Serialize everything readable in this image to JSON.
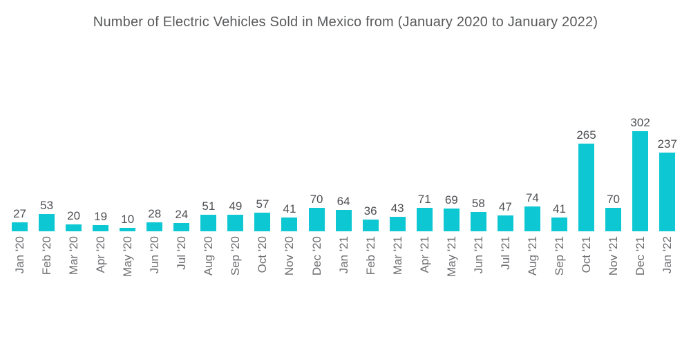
{
  "chart": {
    "title": "Number of Electric Vehicles Sold in Mexico from (January 2020 to January 2022)"
  },
  "chart_data": {
    "type": "bar",
    "title": "Number of Electric Vehicles Sold in Mexico from (January 2020 to January 2022)",
    "categories": [
      "Jan '20",
      "Feb '20",
      "Mar '20",
      "Apr '20",
      "May '20",
      "Jun '20",
      "Jul '20",
      "Aug '20",
      "Sep '20",
      "Oct '20",
      "Nov '20",
      "Dec '20",
      "Jan '21",
      "Feb '21",
      "Mar '21",
      "Apr '21",
      "May '21",
      "Jun '21",
      "Jul '21",
      "Aug '21",
      "Sep '21",
      "Oct '21",
      "Nov '21",
      "Dec '21",
      "Jan '22"
    ],
    "values": [
      27,
      53,
      20,
      19,
      10,
      28,
      24,
      51,
      49,
      57,
      41,
      70,
      64,
      36,
      43,
      71,
      69,
      58,
      47,
      74,
      41,
      265,
      70,
      302,
      237
    ],
    "xlabel": "",
    "ylabel": "",
    "ylim": [
      0,
      302
    ],
    "grid": false,
    "legend": false,
    "data_labels": true,
    "colors": {
      "bar": "#0dc8d2",
      "value_label": "#4d4f53",
      "axis_label": "#6d6e71",
      "title": "#58595b",
      "background": "#ffffff"
    }
  }
}
